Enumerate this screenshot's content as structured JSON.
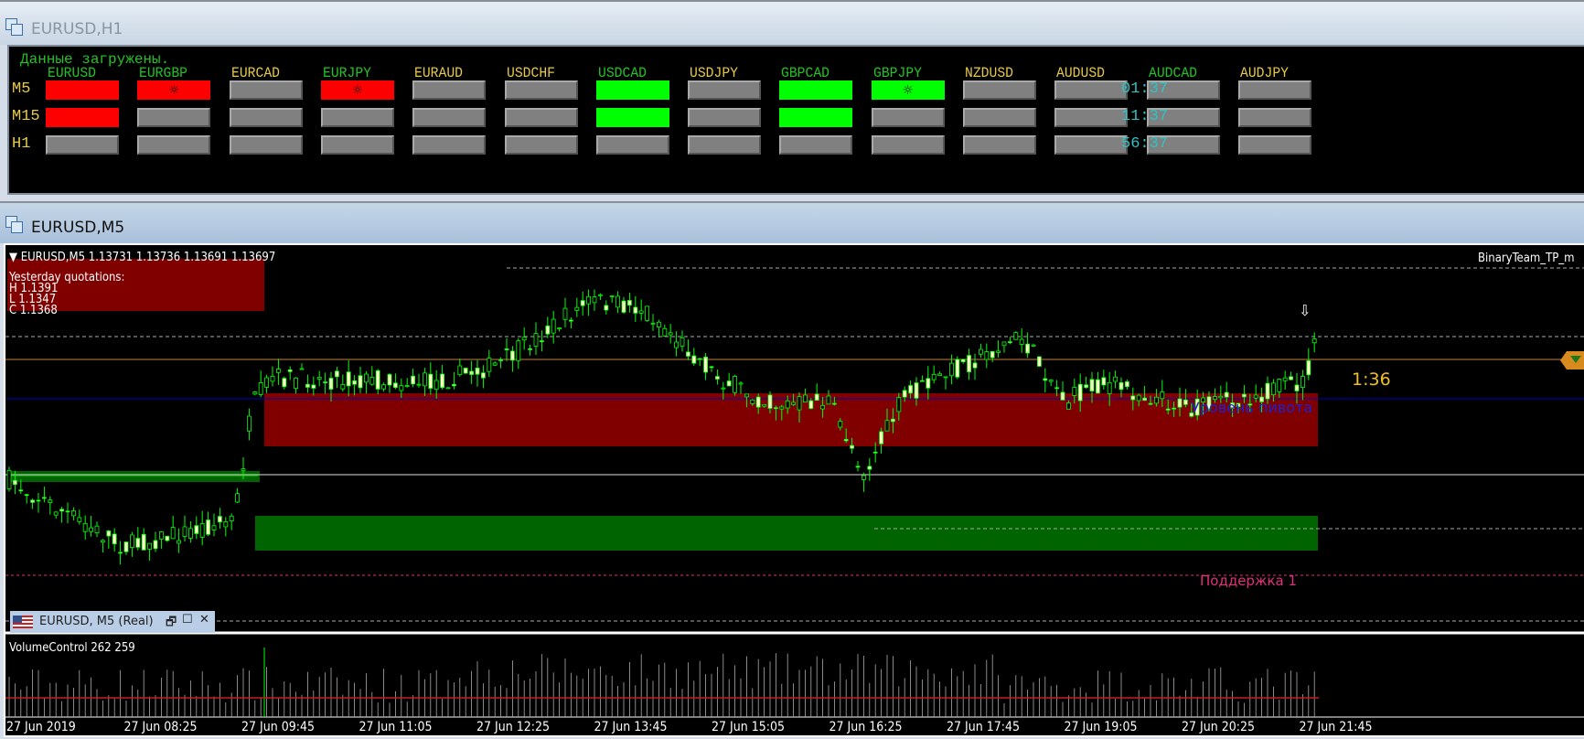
{
  "window_h1": {
    "title": "EURUSD,H1"
  },
  "panel": {
    "status": "Данные загружены.",
    "rows": [
      "M5",
      "M15",
      "H1"
    ],
    "timers": [
      "01:37",
      "11:37",
      "56:37"
    ],
    "colors": {
      "red": "#ff0000",
      "green": "#00ff00",
      "gray": "#808080",
      "label_green": "#22c322",
      "label_gold": "#e6c84a"
    },
    "pairs": [
      {
        "name": "EURUSD",
        "label_color": "green",
        "states": [
          "red",
          "red",
          "gray"
        ],
        "icons": [
          false,
          false,
          false
        ]
      },
      {
        "name": "EURGBP",
        "label_color": "green",
        "states": [
          "red",
          "gray",
          "gray"
        ],
        "icons": [
          true,
          false,
          false
        ]
      },
      {
        "name": "EURCAD",
        "label_color": "gold",
        "states": [
          "gray",
          "gray",
          "gray"
        ],
        "icons": [
          false,
          false,
          false
        ]
      },
      {
        "name": "EURJPY",
        "label_color": "green",
        "states": [
          "red",
          "gray",
          "gray"
        ],
        "icons": [
          true,
          false,
          false
        ]
      },
      {
        "name": "EURAUD",
        "label_color": "gold",
        "states": [
          "gray",
          "gray",
          "gray"
        ],
        "icons": [
          false,
          false,
          false
        ]
      },
      {
        "name": "USDCHF",
        "label_color": "gold",
        "states": [
          "gray",
          "gray",
          "gray"
        ],
        "icons": [
          false,
          false,
          false
        ]
      },
      {
        "name": "USDCAD",
        "label_color": "green",
        "states": [
          "green",
          "green",
          "gray"
        ],
        "icons": [
          false,
          false,
          false
        ]
      },
      {
        "name": "USDJPY",
        "label_color": "gold",
        "states": [
          "gray",
          "gray",
          "gray"
        ],
        "icons": [
          false,
          false,
          false
        ]
      },
      {
        "name": "GBPCAD",
        "label_color": "green",
        "states": [
          "green",
          "green",
          "gray"
        ],
        "icons": [
          false,
          false,
          false
        ]
      },
      {
        "name": "GBPJPY",
        "label_color": "green",
        "states": [
          "green",
          "gray",
          "gray"
        ],
        "icons": [
          true,
          false,
          false
        ]
      },
      {
        "name": "NZDUSD",
        "label_color": "gold",
        "states": [
          "gray",
          "gray",
          "gray"
        ],
        "icons": [
          false,
          false,
          false
        ]
      },
      {
        "name": "AUDUSD",
        "label_color": "gold",
        "states": [
          "gray",
          "gray",
          "gray"
        ],
        "icons": [
          false,
          false,
          false
        ]
      },
      {
        "name": "AUDCAD",
        "label_color": "green",
        "states": [
          "gray",
          "gray",
          "gray"
        ],
        "icons": [
          false,
          false,
          false
        ]
      },
      {
        "name": "AUDJPY",
        "label_color": "gold",
        "states": [
          "gray",
          "gray",
          "gray"
        ],
        "icons": [
          false,
          false,
          false
        ]
      }
    ],
    "signal_icon": "sun-gear-icon"
  },
  "window_m5": {
    "title": "EURUSD,M5"
  },
  "chart": {
    "header": "EURUSD,M5  1.13731 1.13736 1.13691 1.13697",
    "indicator_name": "BinaryTeam_TP_m",
    "yesterday": {
      "title": "Yesterday quotations:",
      "high": "H 1.1391",
      "low": "L 1.1347",
      "close": "C 1.1368"
    },
    "pivot_label": "Уровень пивота",
    "support_label": "Поддержка 1",
    "countdown": "1:36",
    "colors": {
      "bull_candle": "#ffffc8",
      "candle_outline": "#00ff00",
      "resistance_zone": "#800000",
      "support_zone": "#006400",
      "pivot": "#0000c0",
      "price_line": "#c8823c",
      "support_line": "#e0307a"
    },
    "mini_tab": {
      "label": "EURUSD, M5 (Real)"
    }
  },
  "volume": {
    "label": "VolumeControl 262 259"
  },
  "time_axis": [
    "27 Jun 2019",
    "27 Jun 08:25",
    "27 Jun 09:45",
    "27 Jun 11:05",
    "27 Jun 12:25",
    "27 Jun 13:45",
    "27 Jun 15:05",
    "27 Jun 16:25",
    "27 Jun 17:45",
    "27 Jun 19:05",
    "27 Jun 20:25",
    "27 Jun 21:45"
  ]
}
